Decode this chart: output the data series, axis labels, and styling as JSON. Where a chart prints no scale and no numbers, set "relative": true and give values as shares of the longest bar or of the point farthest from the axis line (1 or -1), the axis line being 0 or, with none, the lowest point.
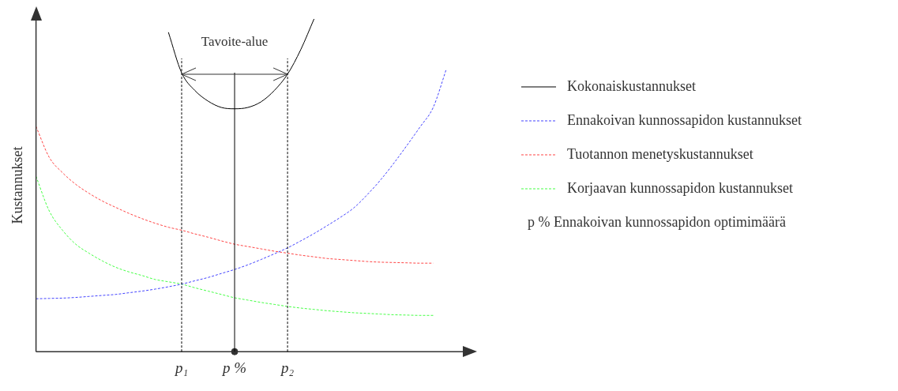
{
  "chart_data": {
    "type": "line",
    "relative": true,
    "ylabel": "Kustannukset",
    "legend": "right",
    "grid": false,
    "categories": [
      null,
      null,
      null,
      null,
      null,
      null,
      null,
      null,
      null,
      null,
      null,
      "p₁",
      null,
      null,
      null,
      "p %",
      null,
      null,
      null,
      "p₂",
      null,
      null,
      null,
      null,
      null,
      null,
      null,
      null,
      null,
      null,
      null,
      null,
      null
    ],
    "series": [
      {
        "name": "Kokonaiskustannukset",
        "color": "#000000",
        "line_style": "solid",
        "values": [
          null,
          null,
          null,
          null,
          null,
          null,
          null,
          null,
          null,
          null,
          0.96,
          0.838,
          0.785,
          0.753,
          0.734,
          0.73,
          0.734,
          0.751,
          0.785,
          0.834,
          0.908,
          1.0,
          null,
          null,
          null,
          null,
          null,
          null,
          null,
          null,
          null,
          null,
          null
        ]
      },
      {
        "name": "Ennakoivan kunnossapidon kustannukset",
        "color": "#4444ff",
        "line_style": "dashed",
        "values": [
          0.159,
          0.16,
          0.161,
          0.163,
          0.166,
          0.169,
          0.172,
          0.177,
          0.182,
          0.188,
          0.195,
          0.203,
          0.213,
          0.223,
          0.235,
          0.247,
          0.261,
          0.277,
          0.294,
          0.312,
          0.333,
          0.355,
          0.379,
          0.404,
          0.432,
          0.471,
          0.515,
          0.565,
          0.619,
          0.675,
          0.734,
          0.85,
          null
        ]
      },
      {
        "name": "Tuotannon menetyskustannukset",
        "color": "#ff4444",
        "line_style": "dashed",
        "values": [
          0.677,
          0.584,
          0.538,
          0.503,
          0.476,
          0.453,
          0.434,
          0.416,
          0.4,
          0.386,
          0.374,
          0.365,
          0.354,
          0.344,
          0.333,
          0.323,
          0.316,
          0.309,
          0.302,
          0.296,
          0.29,
          0.285,
          0.28,
          0.277,
          0.274,
          0.271,
          0.269,
          0.268,
          0.267,
          0.266,
          0.266,
          null,
          null
        ]
      },
      {
        "name": "Korjaavan kunnossapidon kustannukset",
        "color": "#44ff44",
        "line_style": "dashed",
        "values": [
          0.527,
          0.423,
          0.365,
          0.323,
          0.296,
          0.273,
          0.254,
          0.24,
          0.229,
          0.217,
          0.21,
          0.203,
          0.192,
          0.182,
          0.172,
          0.162,
          0.155,
          0.148,
          0.142,
          0.136,
          0.131,
          0.127,
          0.123,
          0.12,
          0.117,
          0.115,
          0.113,
          0.111,
          0.11,
          0.109,
          0.109,
          null,
          null
        ]
      },
      {
        "type": "scatter",
        "color": "#333333",
        "marker": "circle",
        "values": [
          null,
          null,
          null,
          null,
          null,
          null,
          null,
          null,
          null,
          null,
          null,
          null,
          null,
          null,
          null,
          0,
          null,
          null,
          null,
          null,
          null,
          null,
          null,
          null,
          null,
          null,
          null,
          null,
          null,
          null,
          null,
          null,
          null
        ]
      }
    ],
    "ref_lines": [
      {
        "axis": "x",
        "value": "p₁",
        "color": "#000000",
        "line_style": "dashed"
      },
      {
        "axis": "x",
        "value": "p %",
        "color": "#000000",
        "line_style": "solid"
      },
      {
        "axis": "x",
        "value": "p₂",
        "color": "#000000",
        "line_style": "dashed"
      }
    ],
    "annotations": [
      "Tavoite-alue",
      "p % Ennakoivan kunnossapidon optimimäärä"
    ]
  }
}
